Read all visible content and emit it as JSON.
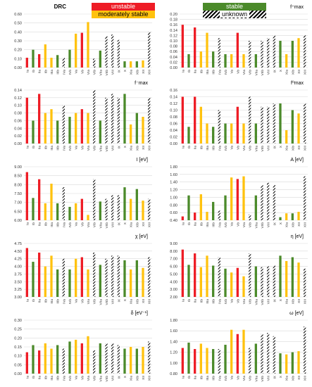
{
  "categories": [
    "Ia",
    "Ib",
    "IIa",
    "IIb",
    "IIIa",
    "IIIb",
    "IVa",
    "IVb",
    "Va",
    "Vb",
    "VIa",
    "VIb",
    "VIIa",
    "VIIb",
    "VIII",
    "IX",
    "X",
    "XIa",
    "XIb",
    "XII",
    "XIII"
  ],
  "category_status": [
    "unstable",
    "stable",
    "unstable",
    "moderately stable",
    "moderately stable",
    "stable",
    "unknown",
    "stable",
    "moderately stable",
    "unstable",
    "moderately stable",
    "unknown",
    "stable",
    "unknown",
    "unknown",
    "unknown",
    "stable",
    "moderately stable",
    "stable",
    "moderately stable",
    "unknown"
  ],
  "legend": [
    {
      "key": "unstable",
      "label": "unstable",
      "color": "#ee1c25"
    },
    {
      "key": "moderately stable",
      "label": "moderately stable",
      "color": "#ffc20e"
    },
    {
      "key": "stable",
      "label": "stable",
      "color": "#4b8a2a"
    },
    {
      "key": "unknown",
      "label": "unknown",
      "color": "hatch"
    }
  ],
  "colors": {
    "unstable": "#ee1c25",
    "moderately_stable": "#ffc20e",
    "stable": "#4b8a2a",
    "hatch": "#000000",
    "grid": "#d9d9d9"
  },
  "chart_data": [
    {
      "type": "bar",
      "title": "DRC",
      "ylim": [
        0,
        0.6
      ],
      "yticks": [
        0,
        0.1,
        0.2,
        0.3,
        0.4,
        0.5,
        0.6
      ],
      "decimals": 2,
      "values": [
        0.11,
        0.2,
        0.15,
        0.26,
        0.11,
        0.14,
        0.11,
        0.2,
        0.38,
        0.39,
        0.51,
        0.1,
        0.19,
        0.35,
        0.37,
        0.31,
        0.07,
        0.07,
        0.07,
        0.08,
        0.4
      ]
    },
    {
      "type": "bar",
      "title": "f⁺max",
      "ylim": [
        0,
        0.2
      ],
      "yticks": [
        0,
        0.02,
        0.04,
        0.06,
        0.08,
        0.1,
        0.12,
        0.14,
        0.16,
        0.18,
        0.2
      ],
      "decimals": 2,
      "values": [
        0.16,
        0.05,
        0.15,
        0.06,
        0.13,
        0.06,
        0.11,
        0.05,
        0.05,
        0.13,
        0.05,
        0.1,
        0.05,
        0.1,
        0.11,
        0.12,
        0.1,
        0.05,
        0.1,
        0.11,
        0.12
      ]
    },
    {
      "type": "bar",
      "title": "f⁻max",
      "ylim": [
        0,
        0.14
      ],
      "yticks": [
        0,
        0.02,
        0.04,
        0.06,
        0.08,
        0.1,
        0.12,
        0.14
      ],
      "decimals": 2,
      "values": [
        0.12,
        0.06,
        0.13,
        0.08,
        0.09,
        0.06,
        0.1,
        0.07,
        0.08,
        0.09,
        0.08,
        0.14,
        0.06,
        0.12,
        0.13,
        0.12,
        0.13,
        0.05,
        0.08,
        0.07,
        0.12
      ]
    },
    {
      "type": "bar",
      "title": "f⁰max",
      "ylim": [
        0,
        0.16
      ],
      "yticks": [
        0,
        0.02,
        0.04,
        0.06,
        0.08,
        0.1,
        0.12,
        0.14,
        0.16
      ],
      "decimals": 2,
      "values": [
        0.14,
        0.05,
        0.14,
        0.11,
        0.06,
        0.05,
        0.1,
        0.06,
        0.06,
        0.11,
        0.06,
        0.14,
        0.06,
        0.11,
        0.11,
        0.12,
        0.12,
        0.04,
        0.1,
        0.09,
        0.12
      ]
    },
    {
      "type": "bar",
      "title": "I [eV]",
      "ylim": [
        6.0,
        9.0
      ],
      "yticks": [
        6.0,
        6.5,
        7.0,
        7.5,
        8.0,
        8.5,
        9.0
      ],
      "decimals": 2,
      "values": [
        8.7,
        7.25,
        8.3,
        6.95,
        8.05,
        6.95,
        7.85,
        6.75,
        6.95,
        7.2,
        6.3,
        8.3,
        7.05,
        7.2,
        7.4,
        7.4,
        7.85,
        7.2,
        7.75,
        7.1,
        7.2
      ]
    },
    {
      "type": "bar",
      "title": "A [eV]",
      "ylim": [
        0.4,
        1.8
      ],
      "yticks": [
        0.4,
        0.6,
        0.8,
        1.0,
        1.2,
        1.4,
        1.6,
        1.8
      ],
      "decimals": 2,
      "values": [
        0.5,
        1.05,
        0.6,
        1.08,
        0.62,
        0.88,
        0.65,
        1.05,
        1.52,
        1.48,
        1.55,
        0.55,
        1.05,
        1.32,
        1.38,
        1.32,
        0.48,
        0.58,
        0.58,
        0.62,
        1.55
      ]
    },
    {
      "type": "bar",
      "title": "χ [eV]",
      "ylim": [
        3.0,
        4.75
      ],
      "yticks": [
        3.0,
        3.25,
        3.5,
        3.75,
        4.0,
        4.25,
        4.5,
        4.75
      ],
      "decimals": 2,
      "values": [
        4.6,
        4.15,
        4.45,
        4.0,
        4.35,
        3.9,
        4.25,
        3.9,
        4.25,
        4.3,
        3.9,
        4.45,
        4.05,
        4.25,
        4.35,
        4.35,
        4.2,
        3.9,
        4.2,
        3.95,
        4.3
      ]
    },
    {
      "type": "bar",
      "title": "η [eV]",
      "ylim": [
        2.0,
        9.0
      ],
      "yticks": [
        2.0,
        3.0,
        4.0,
        5.0,
        6.0,
        7.0,
        8.0,
        9.0
      ],
      "decimals": 2,
      "values": [
        8.2,
        6.2,
        7.7,
        5.9,
        7.4,
        6.1,
        7.2,
        5.7,
        5.2,
        5.8,
        4.7,
        7.7,
        6.0,
        5.9,
        6.0,
        6.1,
        7.4,
        6.7,
        7.2,
        6.5,
        5.7
      ]
    },
    {
      "type": "bar",
      "title": "δ [eV⁻¹]",
      "ylim": [
        0,
        0.3
      ],
      "yticks": [
        0,
        0.05,
        0.1,
        0.15,
        0.2,
        0.25,
        0.3
      ],
      "decimals": 2,
      "values": [
        0.12,
        0.16,
        0.13,
        0.17,
        0.14,
        0.16,
        0.14,
        0.18,
        0.19,
        0.17,
        0.21,
        0.13,
        0.17,
        0.17,
        0.17,
        0.16,
        0.14,
        0.15,
        0.14,
        0.15,
        0.18
      ]
    },
    {
      "type": "bar",
      "title": "ω [eV]",
      "ylim": [
        0.8,
        1.8
      ],
      "yticks": [
        0.8,
        1.0,
        1.2,
        1.4,
        1.6,
        1.8
      ],
      "decimals": 2,
      "values": [
        1.28,
        1.38,
        1.26,
        1.36,
        1.28,
        1.26,
        1.26,
        1.34,
        1.62,
        1.54,
        1.62,
        1.28,
        1.36,
        1.54,
        1.56,
        1.5,
        1.18,
        1.16,
        1.2,
        1.22,
        1.68
      ]
    }
  ]
}
